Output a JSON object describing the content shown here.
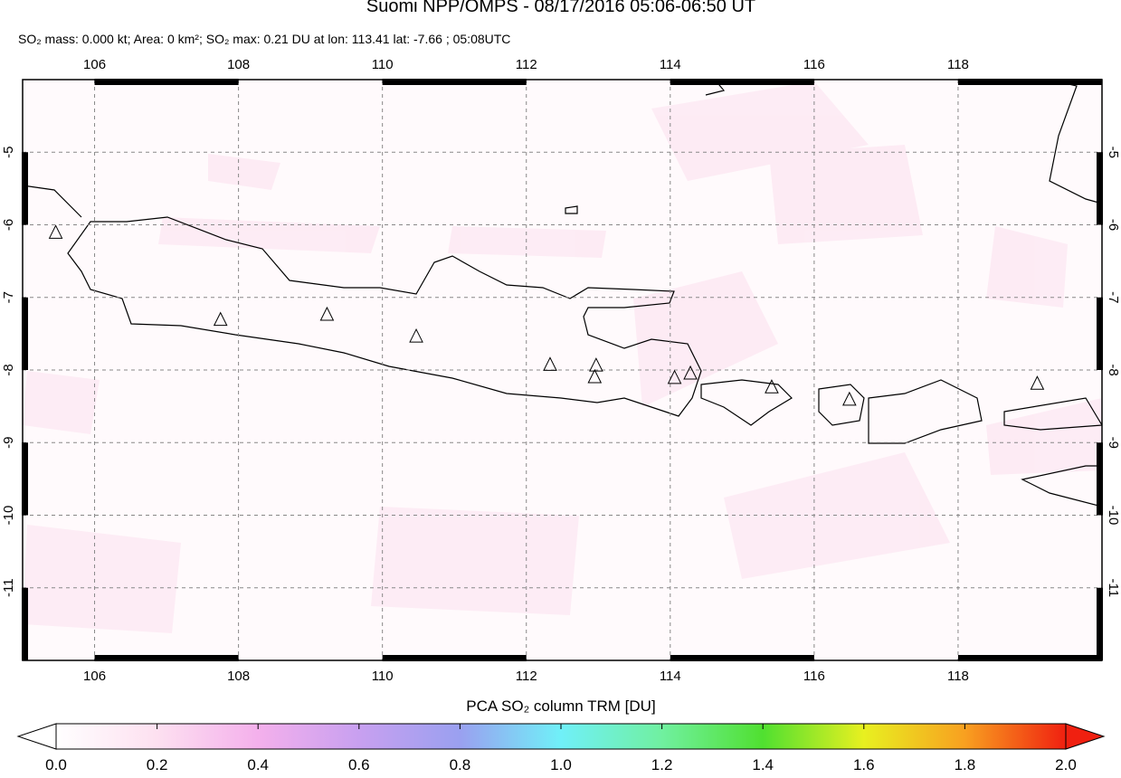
{
  "header": {
    "title": "Suomi NPP/OMPS - 08/17/2016 05:06-06:50 UT",
    "subtitle": "SO₂ mass: 0.000 kt; Area: 0 km²; SO₂ max: 0.21 DU at lon: 113.41 lat: -7.66 ; 05:08UTC"
  },
  "map": {
    "lonlim": [
      105,
      120
    ],
    "latlim": [
      -12,
      -4
    ],
    "lonticks": [
      106,
      108,
      110,
      112,
      114,
      116,
      118
    ],
    "latticks": [
      -5,
      -6,
      -7,
      -8,
      -9,
      -10,
      -11
    ],
    "volcanoes": [
      {
        "lon": 105.46,
        "lat": -6.11
      },
      {
        "lon": 107.75,
        "lat": -7.31
      },
      {
        "lon": 109.23,
        "lat": -7.24
      },
      {
        "lon": 110.47,
        "lat": -7.54
      },
      {
        "lon": 112.33,
        "lat": -7.93
      },
      {
        "lon": 112.97,
        "lat": -7.94
      },
      {
        "lon": 112.95,
        "lat": -8.1
      },
      {
        "lon": 114.06,
        "lat": -8.11
      },
      {
        "lon": 114.28,
        "lat": -8.05
      },
      {
        "lon": 115.41,
        "lat": -8.24
      },
      {
        "lon": 116.49,
        "lat": -8.41
      },
      {
        "lon": 119.1,
        "lat": -8.19
      }
    ]
  },
  "colorbar": {
    "label": "PCA SO₂ column TRM [DU]",
    "lim": [
      0,
      2
    ],
    "ticks": [
      {
        "value": 0,
        "label": "0.0"
      },
      {
        "value": 0.2,
        "label": "0.2"
      },
      {
        "value": 0.4,
        "label": "0.4"
      },
      {
        "value": 0.6,
        "label": "0.6"
      },
      {
        "value": 0.8,
        "label": "0.8"
      },
      {
        "value": 1,
        "label": "1.0"
      },
      {
        "value": 1.2,
        "label": "1.2"
      },
      {
        "value": 1.4,
        "label": "1.4"
      },
      {
        "value": 1.6,
        "label": "1.6"
      },
      {
        "value": 1.8,
        "label": "1.8"
      },
      {
        "value": 2,
        "label": "2.0"
      }
    ]
  }
}
